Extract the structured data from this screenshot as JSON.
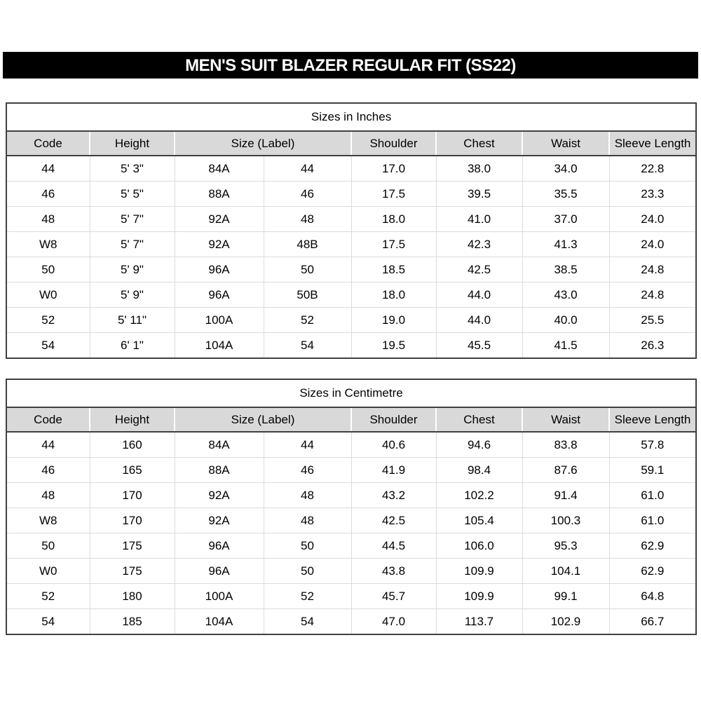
{
  "page_title": "MEN'S SUIT BLAZER REGULAR FIT (SS22)",
  "colors": {
    "title_bar_bg": "#000000",
    "title_bar_text": "#ffffff",
    "header_row_bg": "#d9d9d9",
    "dark_border": "#404040",
    "light_gridline": "#dcdcdc"
  },
  "tables": [
    {
      "title": "Sizes in Inches",
      "column_headers": [
        "Code",
        "Height",
        "Size (Label)",
        "Shoulder",
        "Chest",
        "Waist",
        "Sleeve Length"
      ],
      "header_colspans": [
        1,
        1,
        2,
        1,
        1,
        1,
        1
      ],
      "rows": [
        [
          "44",
          "5' 3\"",
          "84A",
          "44",
          "17.0",
          "38.0",
          "34.0",
          "22.8"
        ],
        [
          "46",
          "5' 5\"",
          "88A",
          "46",
          "17.5",
          "39.5",
          "35.5",
          "23.3"
        ],
        [
          "48",
          "5' 7\"",
          "92A",
          "48",
          "18.0",
          "41.0",
          "37.0",
          "24.0"
        ],
        [
          "W8",
          "5' 7\"",
          "92A",
          "48B",
          "17.5",
          "42.3",
          "41.3",
          "24.0"
        ],
        [
          "50",
          "5' 9\"",
          "96A",
          "50",
          "18.5",
          "42.5",
          "38.5",
          "24.8"
        ],
        [
          "W0",
          "5' 9\"",
          "96A",
          "50B",
          "18.0",
          "44.0",
          "43.0",
          "24.8"
        ],
        [
          "52",
          "5' 11\"",
          "100A",
          "52",
          "19.0",
          "44.0",
          "40.0",
          "25.5"
        ],
        [
          "54",
          "6' 1\"",
          "104A",
          "54",
          "19.5",
          "45.5",
          "41.5",
          "26.3"
        ]
      ]
    },
    {
      "title": "Sizes in Centimetre",
      "column_headers": [
        "Code",
        "Height",
        "Size (Label)",
        "Shoulder",
        "Chest",
        "Waist",
        "Sleeve Length"
      ],
      "header_colspans": [
        1,
        1,
        2,
        1,
        1,
        1,
        1
      ],
      "rows": [
        [
          "44",
          "160",
          "84A",
          "44",
          "40.6",
          "94.6",
          "83.8",
          "57.8"
        ],
        [
          "46",
          "165",
          "88A",
          "46",
          "41.9",
          "98.4",
          "87.6",
          "59.1"
        ],
        [
          "48",
          "170",
          "92A",
          "48",
          "43.2",
          "102.2",
          "91.4",
          "61.0"
        ],
        [
          "W8",
          "170",
          "92A",
          "48",
          "42.5",
          "105.4",
          "100.3",
          "61.0"
        ],
        [
          "50",
          "175",
          "96A",
          "50",
          "44.5",
          "106.0",
          "95.3",
          "62.9"
        ],
        [
          "W0",
          "175",
          "96A",
          "50",
          "43.8",
          "109.9",
          "104.1",
          "62.9"
        ],
        [
          "52",
          "180",
          "100A",
          "52",
          "45.7",
          "109.9",
          "99.1",
          "64.8"
        ],
        [
          "54",
          "185",
          "104A",
          "54",
          "47.0",
          "113.7",
          "102.9",
          "66.7"
        ]
      ]
    }
  ]
}
